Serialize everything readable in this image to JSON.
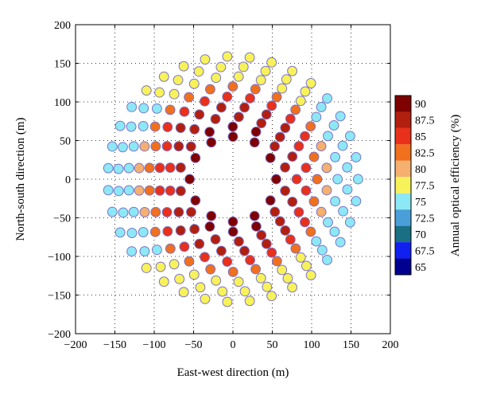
{
  "chart_data": {
    "type": "scatter",
    "xlabel": "East-west direction (m)",
    "ylabel": "North-south direction (m)",
    "xlim": [
      -200,
      200
    ],
    "ylim": [
      -200,
      200
    ],
    "x_ticks": [
      -200,
      -150,
      -100,
      -50,
      0,
      50,
      100,
      150,
      200
    ],
    "y_ticks": [
      -200,
      -150,
      -100,
      -50,
      0,
      50,
      100,
      150,
      200
    ],
    "grid": "dotted",
    "colorbar": {
      "label": "Annual optical efficiency (%)",
      "levels": [
        {
          "value": "90",
          "color": "#7f0000"
        },
        {
          "value": "87.5",
          "color": "#b21f0f"
        },
        {
          "value": "85",
          "color": "#e8301a"
        },
        {
          "value": "82.5",
          "color": "#f0701e"
        },
        {
          "value": "80",
          "color": "#f5b070"
        },
        {
          "value": "77.5",
          "color": "#f8f25a"
        },
        {
          "value": "75",
          "color": "#8de8f5"
        },
        {
          "value": "72.5",
          "color": "#4a9fd8"
        },
        {
          "value": "70",
          "color": "#1a6f82"
        },
        {
          "value": "67.5",
          "color": "#1020f0"
        },
        {
          "value": "65",
          "color": "#000090"
        }
      ]
    },
    "marker": {
      "radius_m": 6,
      "edge_color": "#7a73c8"
    },
    "rings": [
      {
        "r": 55,
        "n": 12,
        "phase": 0,
        "value": 88.0
      },
      {
        "r": 68,
        "n": 14,
        "phase": 13,
        "value": 86.8
      },
      {
        "r": 81,
        "n": 17,
        "phase": 0,
        "value": 85.8
      },
      {
        "r": 94,
        "n": 20,
        "phase": 9,
        "value": 84.8
      },
      {
        "r": 107,
        "n": 23,
        "phase": 0,
        "value": 83.0
      },
      {
        "r": 120,
        "n": 26,
        "phase": 7,
        "value": 80.5
      },
      {
        "r": 133,
        "n": 29,
        "phase": 0,
        "value": 78.0
      },
      {
        "r": 146,
        "n": 32,
        "phase": 6,
        "value": 77.0
      },
      {
        "r": 159,
        "n": 35,
        "phase": 0,
        "value": 76.5
      }
    ]
  }
}
